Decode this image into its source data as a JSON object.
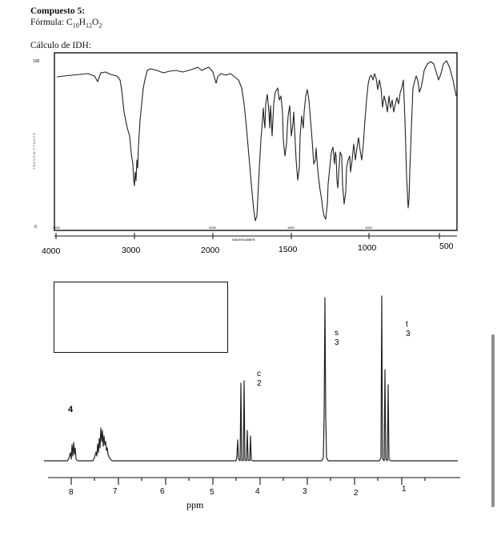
{
  "header": {
    "compound_title": "Compuesto 5:",
    "formula_prefix": "Fórmula: C",
    "formula_sub_c": "10",
    "formula_h": "H",
    "formula_sub_h": "12",
    "formula_o": "O",
    "formula_sub_o": "2",
    "idh_label": "Cálculo de IDH:"
  },
  "ir_spectrum": {
    "y_top_label": "100",
    "y_bottom_label": "0",
    "axis_labels": [
      "4000",
      "3000",
      "2000",
      "1500",
      "1000",
      "500"
    ],
    "axis_title_small": "WAVENUMBER",
    "colors": {
      "line": "#222222",
      "frame": "#111111"
    }
  },
  "nmr_spectrum": {
    "axis_ticks": [
      "8",
      "7",
      "6",
      "5",
      "4",
      "3",
      "2",
      "1"
    ],
    "axis_unit": "ppm",
    "labels": {
      "aromatic_integration": "4",
      "quartet_multiplicity": "c",
      "quartet_integration": "2",
      "singlet_multiplicity": "s",
      "singlet_integration": "3",
      "triplet_multiplicity": "t",
      "triplet_integration": "3"
    },
    "answer_box": ""
  }
}
